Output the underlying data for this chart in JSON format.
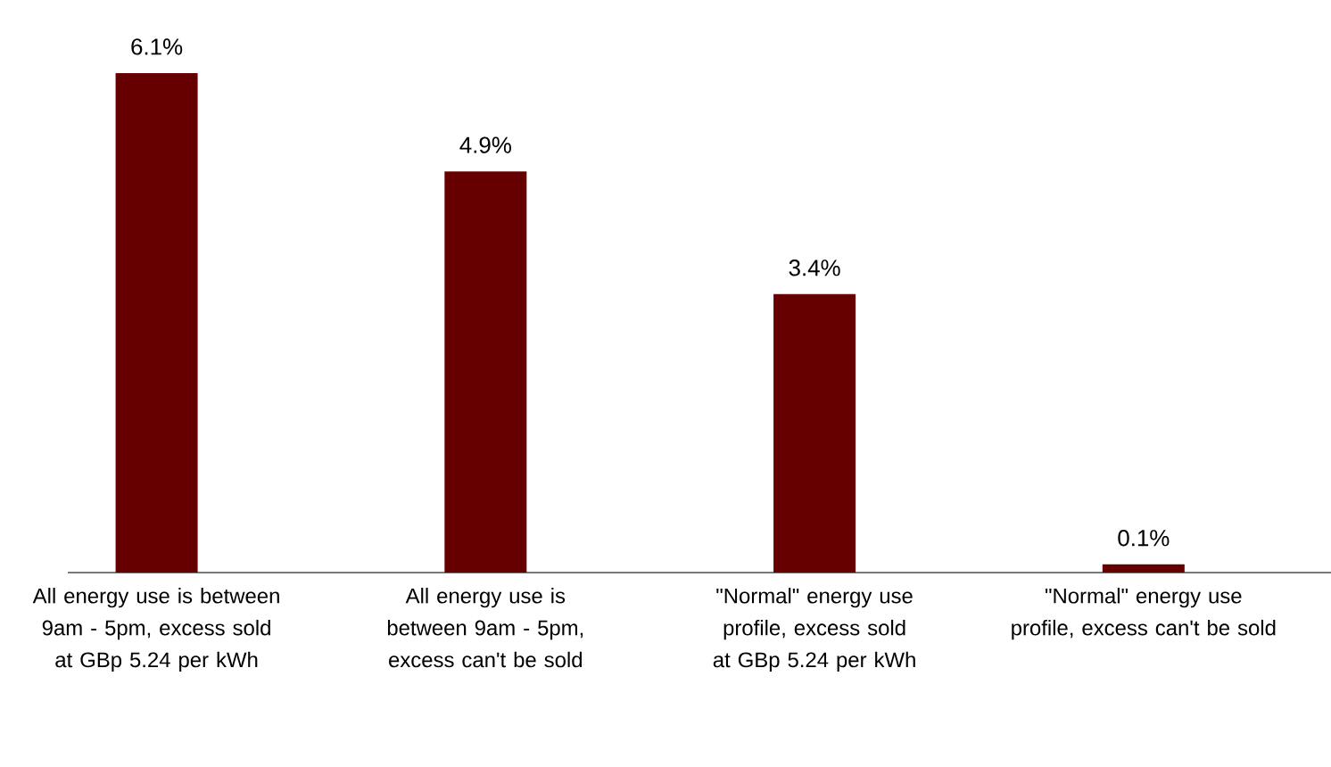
{
  "chart_data": {
    "type": "bar",
    "categories": [
      "All energy use is between 9am - 5pm, excess sold at GBp 5.24 per kWh",
      "All energy use is between 9am - 5pm, excess can't be sold",
      "\"Normal\" energy use profile, excess sold at GBp 5.24 per kWh",
      "\"Normal\" energy use profile, excess can't be sold"
    ],
    "values": [
      6.1,
      4.9,
      3.4,
      0.1
    ],
    "value_labels": [
      "6.1%",
      "4.9%",
      "3.4%",
      "0.1%"
    ],
    "color": "#660000",
    "tick_labels": "x"
  }
}
